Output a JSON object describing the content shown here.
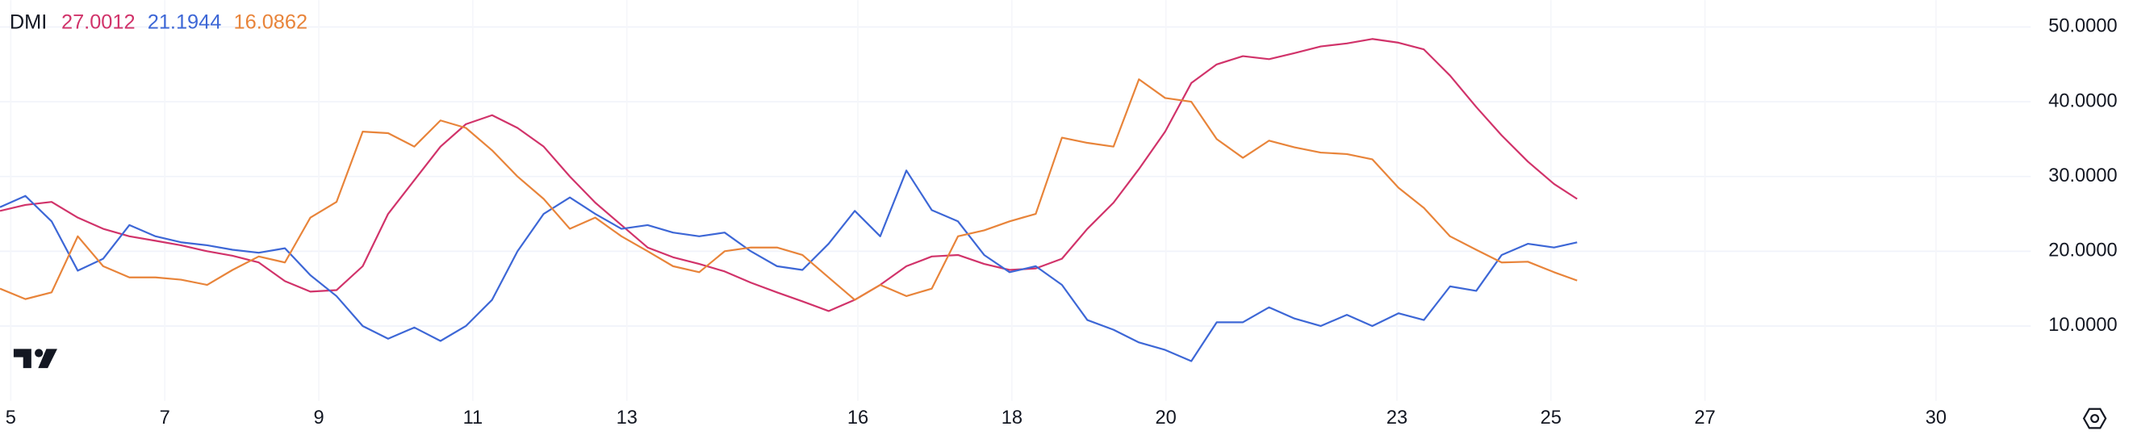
{
  "chart_data": {
    "type": "line",
    "title": "DMI",
    "x": [
      4.86,
      5.19,
      5.53,
      5.87,
      6.2,
      6.54,
      6.88,
      7.21,
      7.55,
      7.88,
      8.22,
      8.56,
      8.89,
      9.23,
      9.57,
      9.9,
      10.24,
      10.58,
      10.91,
      11.25,
      11.58,
      11.92,
      12.26,
      12.59,
      12.93,
      13.27,
      13.6,
      13.94,
      14.27,
      14.61,
      14.95,
      15.28,
      15.62,
      15.96,
      16.29,
      16.63,
      16.96,
      17.3,
      17.64,
      17.97,
      18.31,
      18.65,
      18.98,
      19.32,
      19.65,
      19.99,
      20.33,
      20.66,
      21.0,
      21.34,
      21.67,
      22.01,
      22.35,
      22.68,
      23.02,
      23.35,
      23.69,
      24.03,
      24.36,
      24.7,
      25.04,
      25.34
    ],
    "series": [
      {
        "color": "#d1336a",
        "values": [
          25.4,
          26.2,
          26.6,
          24.5,
          23,
          22,
          21.4,
          20.8,
          20,
          19.4,
          18.5,
          16,
          14.6,
          14.8,
          18,
          25,
          29.5,
          34,
          37,
          38.2,
          36.5,
          34,
          30,
          26.5,
          23.5,
          20.5,
          19.2,
          18.3,
          17.3,
          15.8,
          14.5,
          13.3,
          12,
          13.5,
          15.5,
          18,
          19.3,
          19.5,
          18.3,
          17.5,
          17.7,
          19,
          23,
          26.5,
          31,
          36,
          42.5,
          45,
          46.1,
          45.7,
          46.5,
          47.4,
          47.8,
          48.4,
          47.9,
          47,
          43.5,
          39.3,
          35.5,
          32,
          29,
          27.0012
        ]
      },
      {
        "color": "#3d67d6",
        "values": [
          25.9,
          27.4,
          24,
          17.4,
          19,
          23.5,
          22,
          21.2,
          20.8,
          20.2,
          19.8,
          20.4,
          16.8,
          14,
          10,
          8.3,
          9.8,
          8,
          10,
          13.5,
          20,
          25,
          27.2,
          25,
          23,
          23.5,
          22.5,
          22,
          22.5,
          20,
          18,
          17.5,
          21,
          25.4,
          22,
          30.8,
          25.5,
          24,
          19.5,
          17.2,
          18,
          15.5,
          10.8,
          9.5,
          7.8,
          6.8,
          5.3,
          10.5,
          10.5,
          12.5,
          11,
          10,
          11.5,
          10,
          11.7,
          10.8,
          15.3,
          14.7,
          19.5,
          21,
          20.5,
          21.1944
        ]
      },
      {
        "color": "#e8843a",
        "values": [
          15,
          13.6,
          14.5,
          22,
          18,
          16.5,
          16.5,
          16.2,
          15.5,
          17.5,
          19.3,
          18.5,
          24.5,
          26.6,
          36,
          35.8,
          34,
          37.5,
          36.5,
          33.5,
          30,
          27,
          23,
          24.5,
          22,
          20,
          18,
          17.2,
          20,
          20.5,
          20.5,
          19.5,
          16.5,
          13.5,
          15.5,
          14,
          15,
          22,
          22.8,
          24,
          25,
          35.2,
          34.5,
          34,
          43,
          40.5,
          40,
          35,
          32.5,
          34.8,
          33.9,
          33.2,
          33,
          32.3,
          28.5,
          25.8,
          22,
          20.2,
          18.5,
          18.6,
          17.2,
          16.0862
        ]
      }
    ],
    "xlim": [
      4.86,
      31.23
    ],
    "xticks": [
      5,
      7,
      9,
      11,
      13,
      16,
      18,
      20,
      23,
      25,
      27,
      30
    ],
    "ylim": [
      0,
      53.6
    ],
    "yticks": [
      {
        "value": 10,
        "label": "10.0000"
      },
      {
        "value": 20,
        "label": "20.0000"
      },
      {
        "value": 30,
        "label": "30.0000"
      },
      {
        "value": 40,
        "label": "40.0000"
      },
      {
        "value": 50,
        "label": "50.0000"
      }
    ],
    "grid": true
  }
}
